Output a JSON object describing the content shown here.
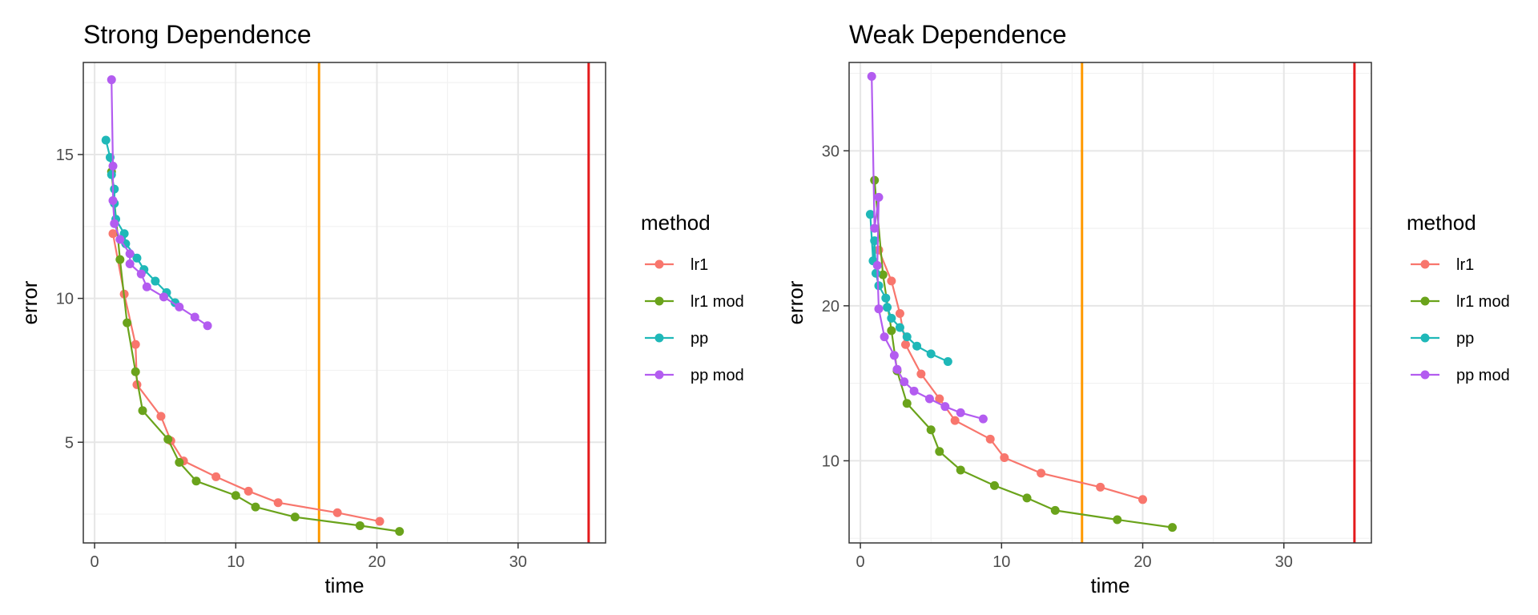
{
  "chart_data": [
    {
      "type": "line",
      "title": "Strong Dependence",
      "xlabel": "time",
      "ylabel": "error",
      "xlim": [
        -0.8,
        36.2
      ],
      "ylim": [
        1.5,
        18.2
      ],
      "x_ticks": [
        0,
        10,
        20,
        30
      ],
      "y_ticks": [
        5,
        10,
        15
      ],
      "grid": true,
      "legend_title": "method",
      "legend_position": "right",
      "vlines": [
        {
          "x": 15.9,
          "color": "#ff9900"
        },
        {
          "x": 35.0,
          "color": "#e41a1c"
        }
      ],
      "series": [
        {
          "name": "lr1",
          "color": "#f8766d",
          "points": [
            [
              1.3,
              12.25
            ],
            [
              2.1,
              10.15
            ],
            [
              2.9,
              8.4
            ],
            [
              3.0,
              7.0
            ],
            [
              4.7,
              5.9
            ],
            [
              5.4,
              5.05
            ],
            [
              6.3,
              4.35
            ],
            [
              8.6,
              3.8
            ],
            [
              10.9,
              3.3
            ],
            [
              13.0,
              2.9
            ],
            [
              17.2,
              2.55
            ],
            [
              20.2,
              2.25
            ]
          ]
        },
        {
          "name": "lr1 mod",
          "color": "#6aa31b",
          "points": [
            [
              1.2,
              14.4
            ],
            [
              1.8,
              11.35
            ],
            [
              2.3,
              9.15
            ],
            [
              2.9,
              7.45
            ],
            [
              3.4,
              6.1
            ],
            [
              5.2,
              5.1
            ],
            [
              6.0,
              4.3
            ],
            [
              7.2,
              3.65
            ],
            [
              10.0,
              3.15
            ],
            [
              11.4,
              2.75
            ],
            [
              14.2,
              2.4
            ],
            [
              18.8,
              2.1
            ],
            [
              21.6,
              1.9
            ]
          ]
        },
        {
          "name": "pp",
          "color": "#1fb8b8",
          "points": [
            [
              0.8,
              15.5
            ],
            [
              1.1,
              14.9
            ],
            [
              1.2,
              14.3
            ],
            [
              1.4,
              13.8
            ],
            [
              1.4,
              13.3
            ],
            [
              1.5,
              12.75
            ],
            [
              2.1,
              12.25
            ],
            [
              2.2,
              11.9
            ],
            [
              3.0,
              11.4
            ],
            [
              3.5,
              11.0
            ],
            [
              4.3,
              10.6
            ],
            [
              5.1,
              10.2
            ],
            [
              5.7,
              9.85
            ]
          ]
        },
        {
          "name": "pp mod",
          "color": "#b35cf0",
          "points": [
            [
              1.2,
              17.6
            ],
            [
              1.3,
              14.6
            ],
            [
              1.3,
              13.4
            ],
            [
              1.4,
              12.6
            ],
            [
              1.8,
              12.05
            ],
            [
              2.5,
              11.55
            ],
            [
              2.5,
              11.2
            ],
            [
              3.3,
              10.85
            ],
            [
              3.7,
              10.4
            ],
            [
              4.9,
              10.05
            ],
            [
              6.0,
              9.7
            ],
            [
              7.1,
              9.35
            ],
            [
              8.0,
              9.05
            ]
          ]
        }
      ]
    },
    {
      "type": "line",
      "title": "Weak Dependence",
      "xlabel": "time",
      "ylabel": "error",
      "xlim": [
        -0.8,
        36.2
      ],
      "ylim": [
        4.7,
        35.7
      ],
      "x_ticks": [
        0,
        10,
        20,
        30
      ],
      "y_ticks": [
        10,
        20,
        30
      ],
      "grid": true,
      "legend_title": "method",
      "legend_position": "right",
      "vlines": [
        {
          "x": 15.7,
          "color": "#ff9900"
        },
        {
          "x": 35.0,
          "color": "#e41a1c"
        }
      ],
      "series": [
        {
          "name": "lr1",
          "color": "#f8766d",
          "points": [
            [
              1.3,
              23.6
            ],
            [
              2.2,
              21.6
            ],
            [
              2.8,
              19.5
            ],
            [
              3.2,
              17.5
            ],
            [
              4.3,
              15.6
            ],
            [
              5.6,
              14.0
            ],
            [
              6.7,
              12.6
            ],
            [
              9.2,
              11.4
            ],
            [
              10.2,
              10.2
            ],
            [
              12.8,
              9.2
            ],
            [
              17.0,
              8.3
            ],
            [
              20.0,
              7.5
            ]
          ]
        },
        {
          "name": "lr1 mod",
          "color": "#6aa31b",
          "points": [
            [
              1.0,
              28.1
            ],
            [
              1.6,
              22.0
            ],
            [
              2.2,
              18.4
            ],
            [
              2.6,
              15.8
            ],
            [
              3.3,
              13.7
            ],
            [
              5.0,
              12.0
            ],
            [
              5.6,
              10.6
            ],
            [
              7.1,
              9.4
            ],
            [
              9.5,
              8.4
            ],
            [
              11.8,
              7.6
            ],
            [
              13.8,
              6.8
            ],
            [
              18.2,
              6.2
            ],
            [
              22.1,
              5.7
            ]
          ]
        },
        {
          "name": "pp",
          "color": "#1fb8b8",
          "points": [
            [
              0.7,
              25.9
            ],
            [
              0.9,
              22.9
            ],
            [
              1.0,
              24.2
            ],
            [
              1.1,
              22.1
            ],
            [
              1.3,
              21.3
            ],
            [
              1.8,
              20.5
            ],
            [
              1.9,
              19.9
            ],
            [
              2.2,
              19.2
            ],
            [
              2.8,
              18.6
            ],
            [
              3.3,
              18.0
            ],
            [
              4.0,
              17.4
            ],
            [
              5.0,
              16.9
            ],
            [
              6.2,
              16.4
            ]
          ]
        },
        {
          "name": "pp mod",
          "color": "#b35cf0",
          "points": [
            [
              0.8,
              34.8
            ],
            [
              1.0,
              25.0
            ],
            [
              1.3,
              27.0
            ],
            [
              1.2,
              22.6
            ],
            [
              1.3,
              19.8
            ],
            [
              1.7,
              18.0
            ],
            [
              2.4,
              16.8
            ],
            [
              2.6,
              15.9
            ],
            [
              3.1,
              15.1
            ],
            [
              3.8,
              14.5
            ],
            [
              4.9,
              14.0
            ],
            [
              6.0,
              13.5
            ],
            [
              7.1,
              13.1
            ],
            [
              8.7,
              12.7
            ]
          ]
        }
      ]
    }
  ]
}
